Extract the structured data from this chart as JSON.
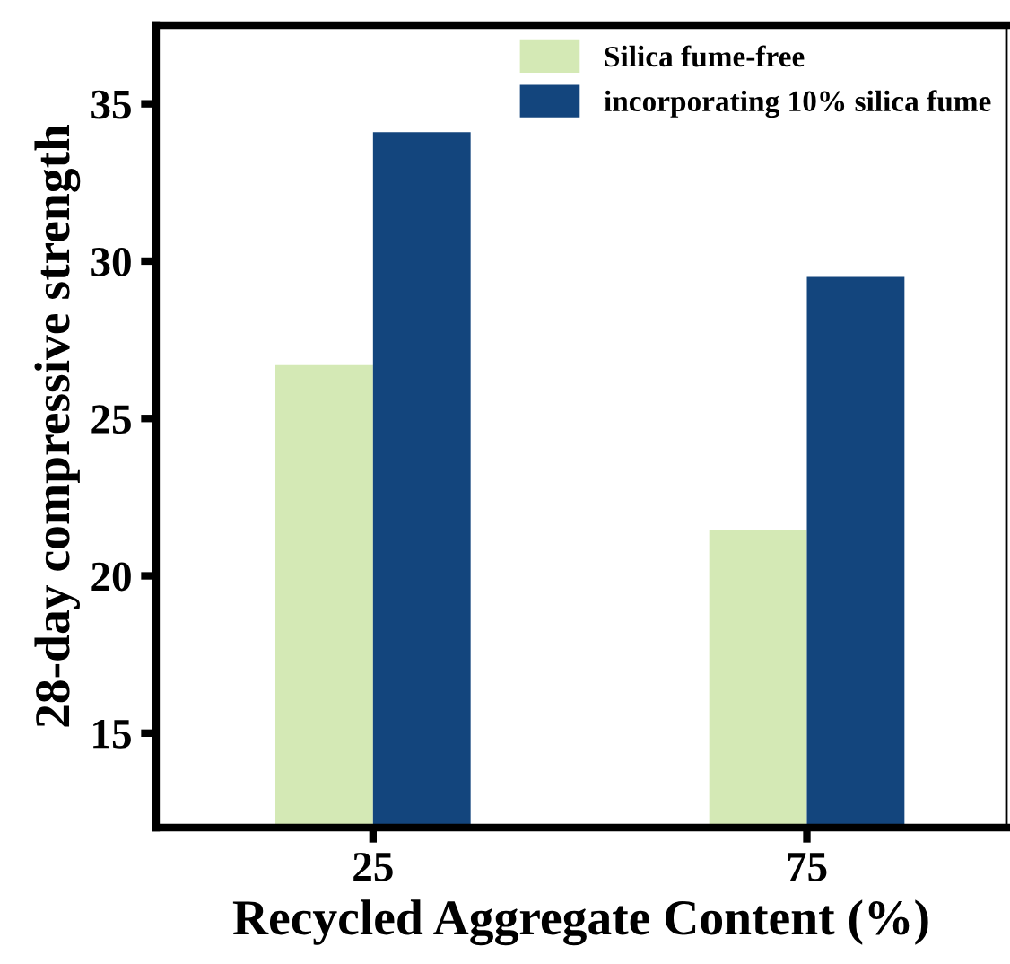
{
  "chart_data": {
    "type": "bar",
    "xlabel": "Recycled Aggregate Content (%)",
    "ylabel": "28-day compressive strength",
    "categories": [
      "25",
      "75"
    ],
    "series": [
      {
        "name": "Silica fume-free",
        "color": "#d4e9b5",
        "values": [
          26.7,
          21.45
        ]
      },
      {
        "name": "incorporating 10% silica fume",
        "color": "#13457d",
        "values": [
          34.1,
          29.5
        ]
      }
    ],
    "ylim": [
      12,
      37.5
    ],
    "yticks": [
      15,
      20,
      25,
      30,
      35
    ],
    "grid": false,
    "legend": "top right"
  }
}
